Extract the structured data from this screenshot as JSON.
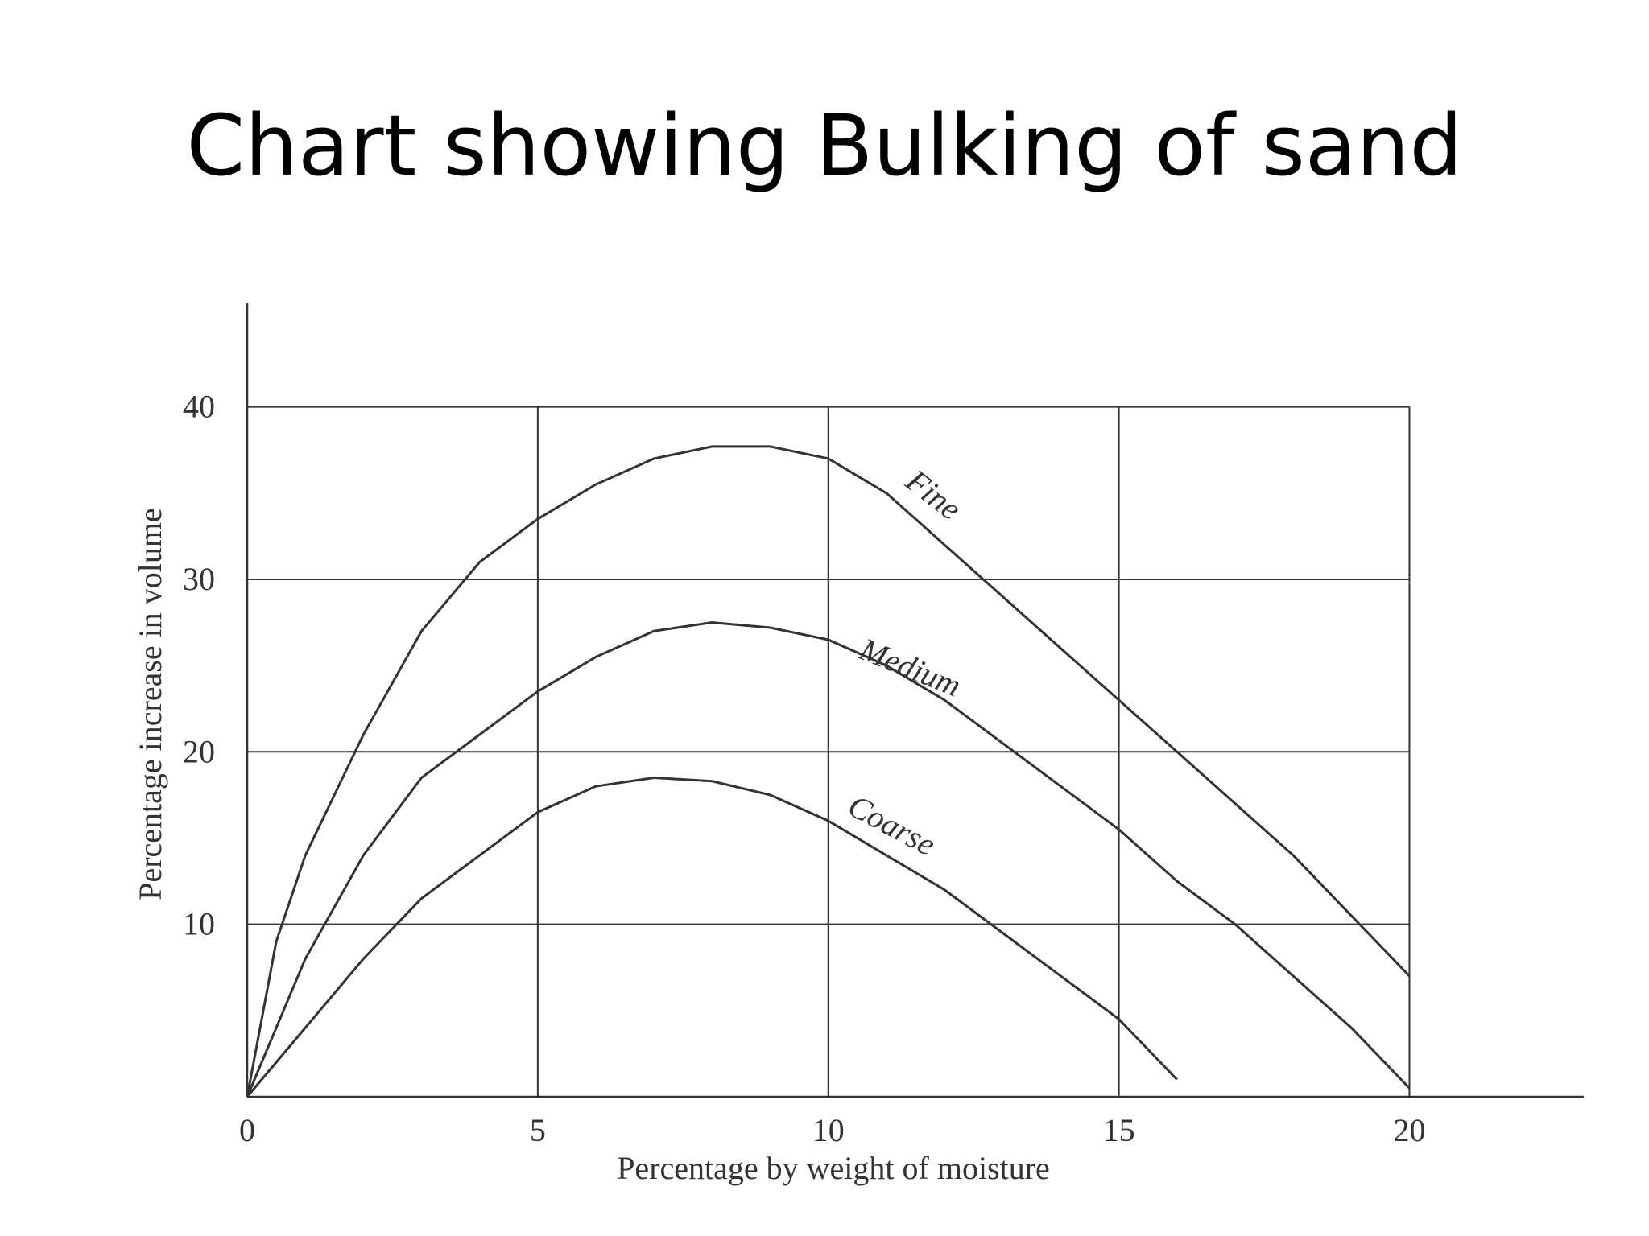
{
  "chart_data": {
    "type": "line",
    "title": "Chart showing Bulking of sand",
    "x_label": "Percentage by weight of moisture",
    "y_label": "Percentage increase in volume",
    "xlim": [
      0,
      23
    ],
    "ylim": [
      0,
      46
    ],
    "xticks": [
      0,
      5,
      10,
      15,
      20
    ],
    "yticks": [
      10,
      20,
      30,
      40
    ],
    "grid": true,
    "series": [
      {
        "name": "Fine",
        "color": "#333333",
        "x": [
          0,
          0.5,
          1,
          2,
          3,
          4,
          5,
          6,
          7,
          8,
          9,
          10,
          11,
          12,
          13,
          14,
          15,
          16,
          17,
          18,
          19,
          20
        ],
        "values": [
          0,
          9,
          14,
          21,
          27,
          31,
          33.5,
          35.5,
          37,
          37.7,
          37.7,
          37,
          35,
          32,
          29,
          26,
          23,
          20,
          17,
          14,
          10.5,
          7
        ]
      },
      {
        "name": "Medium",
        "color": "#333333",
        "x": [
          0,
          1,
          2,
          3,
          4,
          5,
          6,
          7,
          8,
          9,
          10,
          11,
          12,
          13,
          14,
          15,
          16,
          17,
          18,
          19,
          20
        ],
        "values": [
          0,
          8,
          14,
          18.5,
          21,
          23.5,
          25.5,
          27,
          27.5,
          27.2,
          26.5,
          25,
          23,
          20.5,
          18,
          15.5,
          12.5,
          10,
          7,
          4,
          0.5
        ]
      },
      {
        "name": "Coarse",
        "color": "#333333",
        "x": [
          0,
          1,
          2,
          3,
          4,
          5,
          6,
          7,
          8,
          9,
          10,
          11,
          12,
          13,
          14,
          15,
          16
        ],
        "values": [
          0,
          4,
          8,
          11.5,
          14,
          16.5,
          18,
          18.5,
          18.3,
          17.5,
          16,
          14,
          12,
          9.5,
          7,
          4.5,
          1
        ]
      }
    ]
  }
}
